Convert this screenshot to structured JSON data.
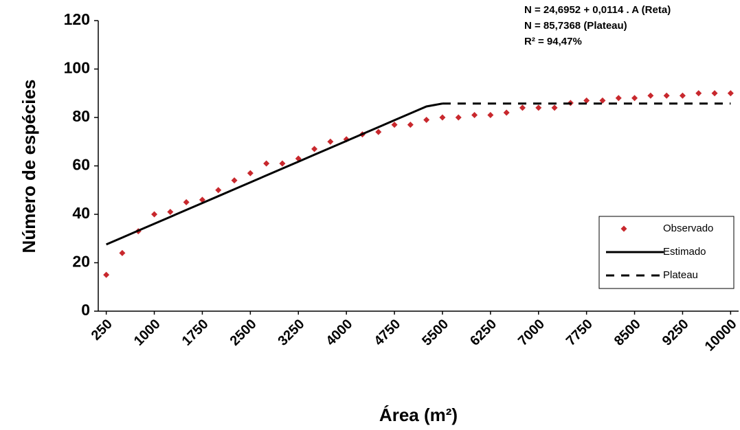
{
  "chart_data": {
    "type": "line",
    "x_label": "Área (m²)",
    "y_label": "Número de espécies",
    "annotations": [
      "N = 24,6952 + 0,0114 . A (Reta)",
      "N = 85,7368 (Plateau)",
      "R² = 94,47%"
    ],
    "categories": [
      "250",
      null,
      null,
      "1000",
      null,
      null,
      "1750",
      null,
      null,
      "2500",
      null,
      null,
      "3250",
      null,
      null,
      "4000",
      null,
      null,
      "4750",
      null,
      null,
      "5500",
      null,
      null,
      "6250",
      null,
      null,
      "7000",
      null,
      null,
      "7750",
      null,
      null,
      "8500",
      null,
      null,
      "9250",
      null,
      null,
      "10000"
    ],
    "series": [
      {
        "name": "Observado",
        "color": "#c8282d",
        "marker": "diamond",
        "values": [
          15,
          24,
          33,
          40,
          41,
          45,
          46,
          50,
          54,
          57,
          61,
          61,
          63,
          67,
          70,
          71,
          73,
          74,
          77,
          77,
          79,
          80,
          80,
          81,
          81,
          82,
          84,
          84,
          84,
          86,
          87,
          87,
          88,
          88,
          89,
          89,
          89,
          90,
          90,
          90
        ]
      },
      {
        "name": "Estimado",
        "color": "#000000",
        "dash": "solid",
        "values": [
          27.55,
          30.4,
          33.25,
          36.1,
          38.95,
          41.8,
          44.65,
          47.5,
          50.35,
          53.2,
          56.05,
          58.9,
          61.75,
          64.6,
          67.45,
          70.3,
          73.15,
          76.0,
          78.85,
          81.7,
          84.55,
          85.74,
          null,
          null,
          null,
          null,
          null,
          null,
          null,
          null,
          null,
          null,
          null,
          null,
          null,
          null,
          null,
          null,
          null,
          null
        ]
      },
      {
        "name": "Plateau",
        "color": "#000000",
        "dash": "dashed",
        "values": [
          null,
          null,
          null,
          null,
          null,
          null,
          null,
          null,
          null,
          null,
          null,
          null,
          null,
          null,
          null,
          null,
          null,
          null,
          null,
          null,
          null,
          85.74,
          85.74,
          85.74,
          85.74,
          85.74,
          85.74,
          85.74,
          85.74,
          85.74,
          85.74,
          85.74,
          85.74,
          85.74,
          85.74,
          85.74,
          85.74,
          85.74,
          85.74,
          85.74
        ]
      }
    ],
    "ylim": [
      0,
      120
    ],
    "yticks": [
      0,
      20,
      40,
      60,
      80,
      100,
      120
    ],
    "grid": false,
    "legend": "lower right"
  }
}
